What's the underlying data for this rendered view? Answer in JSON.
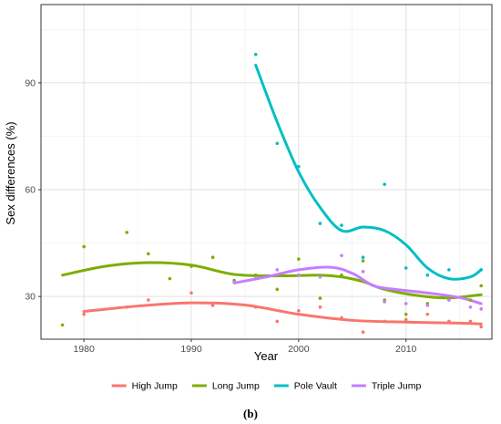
{
  "chart_data": {
    "type": "scatter",
    "caption": "(b)",
    "xlabel": "Year",
    "ylabel": "Sex differences (%)",
    "xlim": [
      1976,
      2018
    ],
    "ylim": [
      18,
      112
    ],
    "x_ticks": [
      1980,
      1990,
      2000,
      2010
    ],
    "y_ticks": [
      30,
      60,
      90
    ],
    "grid": true,
    "legend_position": "bottom",
    "series": [
      {
        "name": "High Jump",
        "color": "#F8766D",
        "points": [
          [
            1980,
            25
          ],
          [
            1984,
            27
          ],
          [
            1986,
            29
          ],
          [
            1990,
            31
          ],
          [
            1992,
            27.5
          ],
          [
            1996,
            27
          ],
          [
            1998,
            23
          ],
          [
            2000,
            26
          ],
          [
            2002,
            27
          ],
          [
            2004,
            24
          ],
          [
            2006,
            20
          ],
          [
            2008,
            23
          ],
          [
            2010,
            23.5
          ],
          [
            2012,
            25
          ],
          [
            2014,
            23
          ],
          [
            2016,
            23
          ],
          [
            2017,
            21.5
          ]
        ],
        "smooth": [
          [
            1980,
            25.8
          ],
          [
            1985,
            27.3
          ],
          [
            1990,
            28.2
          ],
          [
            1995,
            27.6
          ],
          [
            2000,
            25
          ],
          [
            2005,
            23.3
          ],
          [
            2010,
            22.8
          ],
          [
            2015,
            22.5
          ],
          [
            2017,
            22.3
          ]
        ]
      },
      {
        "name": "Long Jump",
        "color": "#7CAE00",
        "points": [
          [
            1978,
            22
          ],
          [
            1980,
            44
          ],
          [
            1984,
            48
          ],
          [
            1986,
            42
          ],
          [
            1988,
            35
          ],
          [
            1990,
            38.5
          ],
          [
            1992,
            41
          ],
          [
            1994,
            34.5
          ],
          [
            1996,
            36
          ],
          [
            1998,
            32
          ],
          [
            2000,
            40.5
          ],
          [
            2002,
            29.5
          ],
          [
            2004,
            36
          ],
          [
            2006,
            40
          ],
          [
            2008,
            29
          ],
          [
            2010,
            25
          ],
          [
            2012,
            28
          ],
          [
            2014,
            29
          ],
          [
            2016,
            29
          ],
          [
            2017,
            33
          ]
        ],
        "smooth": [
          [
            1978,
            36
          ],
          [
            1982,
            38.5
          ],
          [
            1986,
            39.5
          ],
          [
            1990,
            38.8
          ],
          [
            1994,
            36.2
          ],
          [
            1998,
            35.8
          ],
          [
            2002,
            36
          ],
          [
            2004,
            35.5
          ],
          [
            2006,
            34.2
          ],
          [
            2008,
            32
          ],
          [
            2011,
            30.3
          ],
          [
            2014,
            29.6
          ],
          [
            2017,
            30.5
          ]
        ]
      },
      {
        "name": "Pole Vault",
        "color": "#00BFC4",
        "points": [
          [
            1996,
            98
          ],
          [
            1998,
            73
          ],
          [
            2000,
            66.5
          ],
          [
            2002,
            50.5
          ],
          [
            2004,
            50
          ],
          [
            2006,
            41
          ],
          [
            2008,
            61.5
          ],
          [
            2010,
            38
          ],
          [
            2012,
            36
          ],
          [
            2014,
            37.5
          ],
          [
            2017,
            37.5
          ]
        ],
        "smooth": [
          [
            1996,
            95
          ],
          [
            1998,
            79
          ],
          [
            2000,
            65
          ],
          [
            2002,
            55
          ],
          [
            2004,
            48.5
          ],
          [
            2006,
            49.5
          ],
          [
            2008,
            48.5
          ],
          [
            2010,
            44.5
          ],
          [
            2012,
            38
          ],
          [
            2014,
            35
          ],
          [
            2016,
            35.5
          ],
          [
            2017,
            37.5
          ]
        ]
      },
      {
        "name": "Triple Jump",
        "color": "#C77CFF",
        "points": [
          [
            1994,
            34
          ],
          [
            1996,
            35
          ],
          [
            1998,
            37.5
          ],
          [
            2000,
            36
          ],
          [
            2002,
            35.5
          ],
          [
            2004,
            41.5
          ],
          [
            2006,
            37
          ],
          [
            2008,
            28.5
          ],
          [
            2010,
            28
          ],
          [
            2012,
            27.5
          ],
          [
            2014,
            29
          ],
          [
            2016,
            27
          ],
          [
            2017,
            26.5
          ]
        ],
        "smooth": [
          [
            1994,
            33.8
          ],
          [
            1997,
            35.5
          ],
          [
            2000,
            37.5
          ],
          [
            2003,
            38.2
          ],
          [
            2005,
            36.5
          ],
          [
            2007,
            33
          ],
          [
            2009,
            32
          ],
          [
            2012,
            31
          ],
          [
            2015,
            29.7
          ],
          [
            2017,
            28
          ]
        ]
      }
    ]
  }
}
